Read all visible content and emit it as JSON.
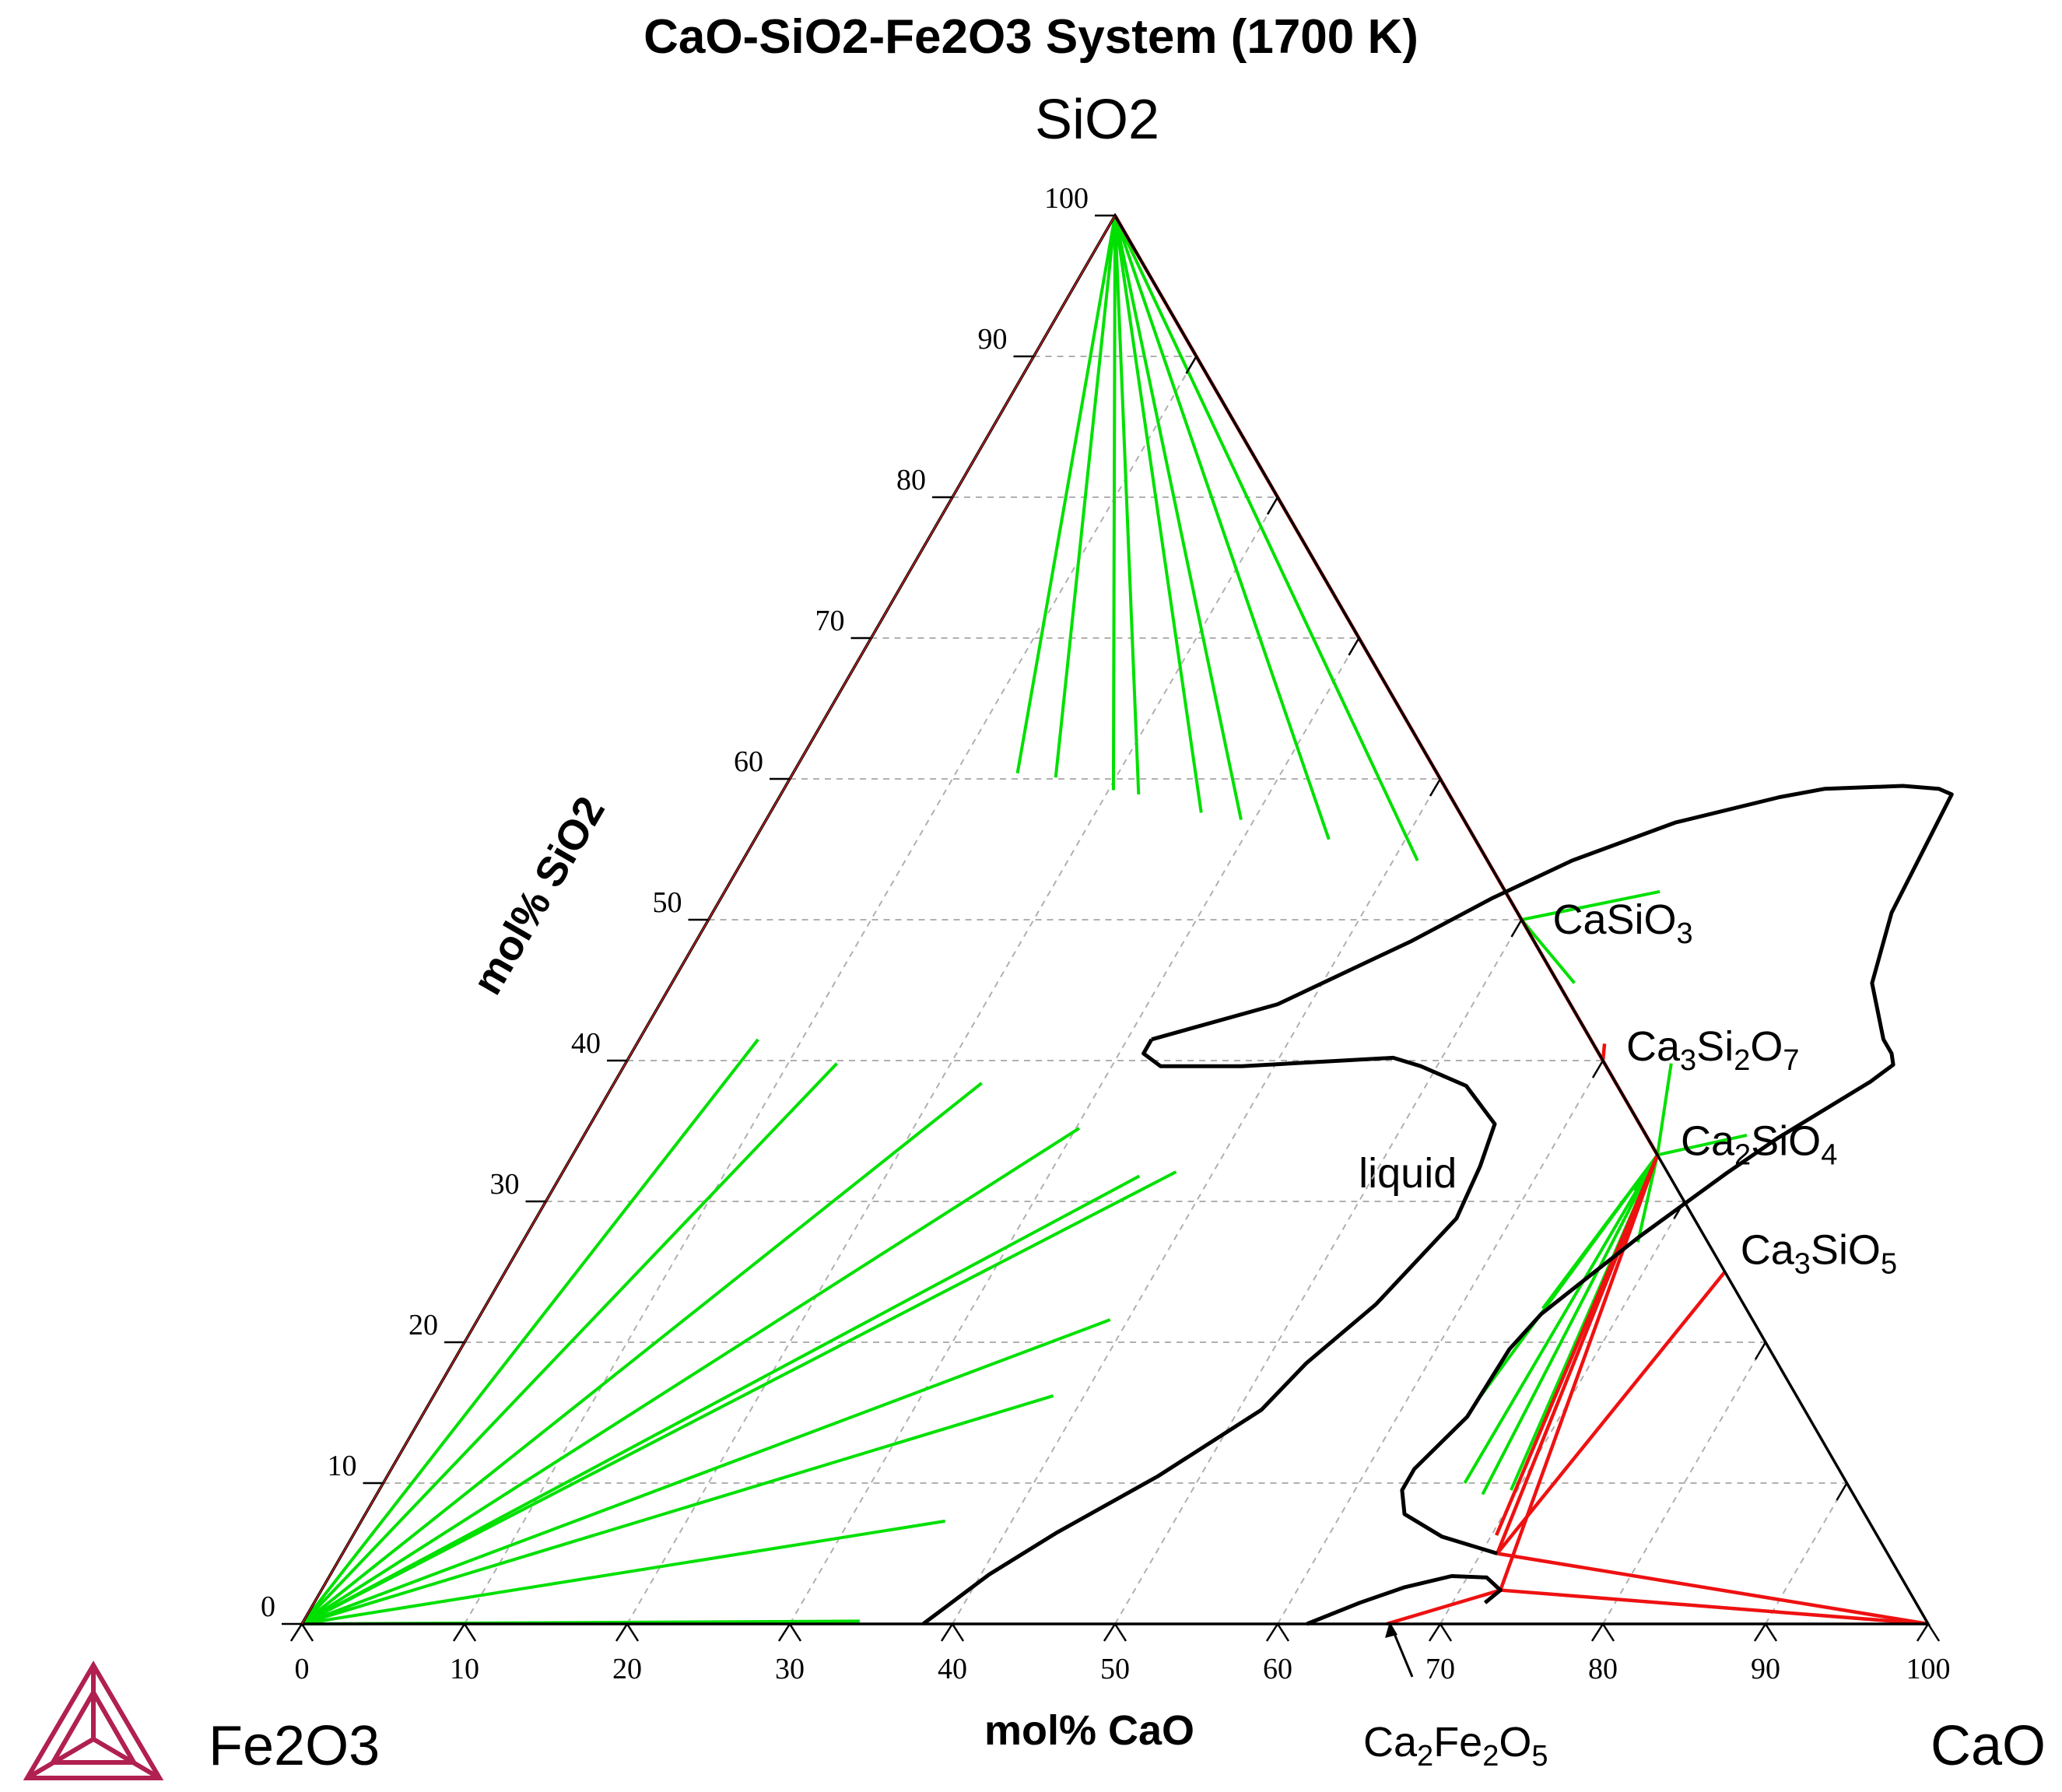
{
  "chart_data": {
    "type": "ternary",
    "title": "CaO-SiO2-Fe2O3 System (1700 K)",
    "components": {
      "top": "SiO2",
      "left": "Fe2O3",
      "right": "CaO"
    },
    "xlabel": "mol% CaO",
    "ylabel": "mol% SiO2",
    "bottom_ticks": [
      "0",
      "10",
      "20",
      "30",
      "40",
      "50",
      "60",
      "70",
      "80",
      "90",
      "100"
    ],
    "left_ticks": [
      "0",
      "10",
      "20",
      "30",
      "40",
      "50",
      "60",
      "70",
      "80",
      "90",
      "100"
    ],
    "tick_values": [
      0,
      10,
      20,
      30,
      40,
      50,
      60,
      70,
      80,
      90,
      100
    ],
    "region_label": {
      "text": "liquid",
      "cao": 52,
      "sio2": 32
    },
    "phases": [
      {
        "name": "CaSiO3",
        "base": "CaSiO",
        "sub": "3",
        "cao": 50,
        "sio2": 50
      },
      {
        "name": "Ca3Si2O7",
        "parts": [
          [
            "Ca",
            ""
          ],
          [
            "3",
            "sub"
          ],
          [
            "Si",
            ""
          ],
          [
            "2",
            "sub"
          ],
          [
            "O",
            ""
          ],
          [
            "7",
            "sub"
          ]
        ],
        "cao": 60,
        "sio2": 40
      },
      {
        "name": "Ca2SiO4",
        "parts": [
          [
            "Ca",
            ""
          ],
          [
            "2",
            "sub"
          ],
          [
            "SiO",
            ""
          ],
          [
            "4",
            "sub"
          ]
        ],
        "cao": 66.7,
        "sio2": 33.3
      },
      {
        "name": "Ca3SiO5",
        "parts": [
          [
            "Ca",
            ""
          ],
          [
            "3",
            "sub"
          ],
          [
            "SiO",
            ""
          ],
          [
            "5",
            "sub"
          ]
        ],
        "cao": 75,
        "sio2": 25
      },
      {
        "name": "Ca2Fe2O5",
        "parts": [
          [
            "Ca",
            ""
          ],
          [
            "2",
            "sub"
          ],
          [
            "Fe",
            ""
          ],
          [
            "2",
            "sub"
          ],
          [
            "O",
            ""
          ],
          [
            "5",
            "sub"
          ]
        ],
        "cao": 66.7,
        "sio2": 0
      }
    ],
    "liquid_boundary_upper": [
      [
        31.5,
        41.5
      ],
      [
        31.5,
        40.5
      ],
      [
        33,
        39.6
      ],
      [
        38,
        39.6
      ],
      [
        47,
        40.2
      ],
      [
        49,
        39.6
      ],
      [
        52.5,
        38.2
      ],
      [
        55.6,
        35.5
      ],
      [
        56.2,
        32.5
      ],
      [
        56.6,
        28.8
      ],
      [
        54.7,
        22.7
      ],
      [
        52.5,
        18.5
      ],
      [
        51.4,
        15.2
      ],
      [
        47.4,
        10.5
      ],
      [
        43.2,
        6.5
      ],
      [
        40.5,
        3.5
      ],
      [
        38.2,
        0
      ]
    ],
    "liquid_boundary_cap": [
      [
        31.5,
        41.5
      ],
      [
        38,
        44
      ],
      [
        44,
        48.5
      ],
      [
        47.4,
        51.5
      ],
      [
        51,
        54.2
      ],
      [
        56,
        56.9
      ],
      [
        61.5,
        58.7
      ],
      [
        64,
        59.3
      ],
      [
        68.7,
        59.5
      ],
      [
        71,
        59.3
      ],
      [
        72,
        58.9
      ],
      [
        72.5,
        50.5
      ],
      [
        73.8,
        45.5
      ],
      [
        76.5,
        41.5
      ],
      [
        77.5,
        40.5
      ],
      [
        78,
        39.7
      ],
      [
        77.2,
        38.5
      ],
      [
        73.5,
        34.5
      ],
      [
        71.6,
        32
      ],
      [
        68.5,
        27.5
      ],
      [
        65.2,
        22
      ],
      [
        64.5,
        19.5
      ],
      [
        64.3,
        14.7
      ],
      [
        62.9,
        11
      ],
      [
        62.9,
        9.5
      ],
      [
        63.9,
        7.8
      ],
      [
        67,
        6.2
      ],
      [
        71,
        5
      ]
    ],
    "liquid_boundary_lower": [
      [
        61.8,
        0
      ],
      [
        64.3,
        1.5
      ],
      [
        66.5,
        2.6
      ],
      [
        69,
        3.4
      ],
      [
        71.2,
        3.3
      ],
      [
        72.5,
        2.4
      ],
      [
        72,
        1.5
      ]
    ],
    "tie_lines": [
      {
        "color": "#00e000",
        "from": [
          0,
          100
        ],
        "to": [
          [
            41.5,
            54.2
          ],
          [
            35.3,
            55.7
          ],
          [
            29.2,
            57.1
          ],
          [
            26.5,
            57.6
          ],
          [
            22,
            58.9
          ],
          [
            20.3,
            59.2
          ],
          [
            16.3,
            60.1
          ],
          [
            13.8,
            60.4
          ]
        ]
      },
      {
        "color": "#00e000",
        "from": [
          0,
          0
        ],
        "to": [
          [
            7.3,
            41.5
          ],
          [
            13,
            39.8
          ],
          [
            22.6,
            38.4
          ],
          [
            30.2,
            35.2
          ],
          [
            35.6,
            31.8
          ],
          [
            37.7,
            32.1
          ],
          [
            38.9,
            21.6
          ],
          [
            38.1,
            16.2
          ],
          [
            35.9,
            7.3
          ],
          [
            34.2,
            0.2
          ]
        ]
      },
      {
        "color": "#00e000",
        "from": [
          66.7,
          33.3
        ],
        "to": [
          [
            64.3,
            39.8
          ],
          [
            71.5,
            34.7
          ],
          [
            66.5,
            30.8
          ],
          [
            68.6,
            27.1
          ],
          [
            65.1,
            22.4
          ],
          [
            64.4,
            16.2
          ],
          [
            66.5,
            10
          ],
          [
            68,
            9.2
          ],
          [
            69.6,
            9.5
          ],
          [
            70.3,
            6.3
          ],
          [
            71,
            5
          ]
        ]
      },
      {
        "color": "#00e000",
        "from": [
          50,
          50
        ],
        "to": [
          [
            57.5,
            52
          ],
          [
            55.5,
            45.5
          ]
        ]
      }
    ],
    "phase_lines_red": [
      [
        [
          0,
          100
        ],
        [
          50,
          50
        ]
      ],
      [
        [
          50,
          50
        ],
        [
          60,
          40
        ]
      ],
      [
        [
          60,
          40
        ],
        [
          66.7,
          33.3
        ]
      ],
      [
        [
          66.7,
          33.3
        ],
        [
          71,
          5
        ]
      ],
      [
        [
          71,
          5
        ],
        [
          100,
          0
        ]
      ],
      [
        [
          66.7,
          33.3
        ],
        [
          72.5,
          2.4
        ]
      ],
      [
        [
          75,
          25
        ],
        [
          71,
          5
        ]
      ],
      [
        [
          72.5,
          2.4
        ],
        [
          100,
          0
        ]
      ],
      [
        [
          66.7,
          0
        ],
        [
          72.5,
          2.4
        ]
      ],
      [
        [
          59.5,
          41.2
        ],
        [
          60,
          40
        ]
      ],
      [
        [
          66.7,
          33.3
        ],
        [
          70.3,
          6.3
        ]
      ]
    ]
  }
}
